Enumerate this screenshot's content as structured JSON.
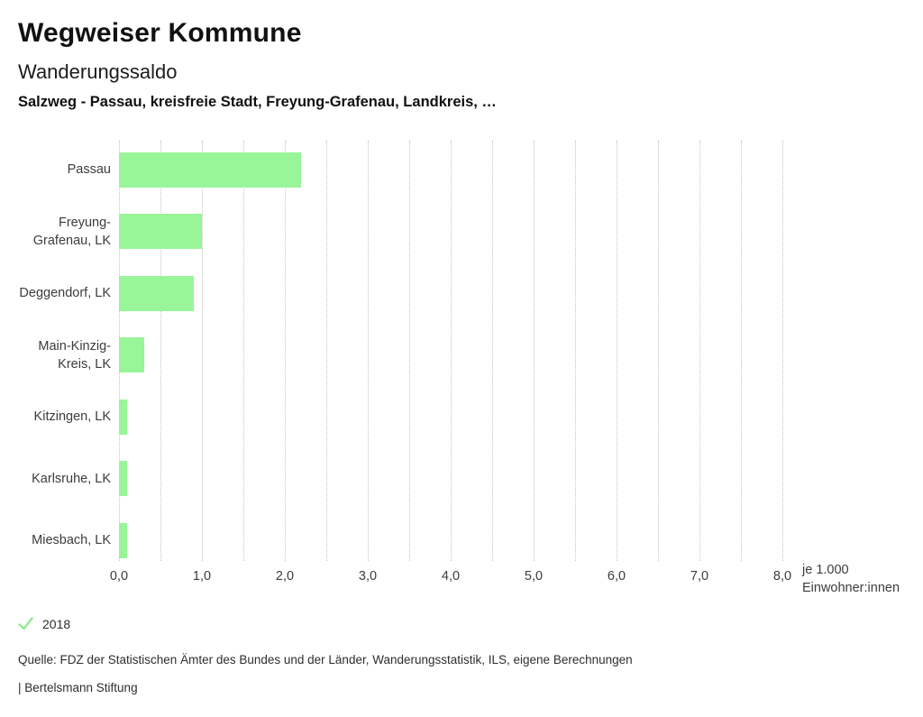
{
  "header": {
    "title": "Wegweiser Kommune",
    "subtitle": "Wanderungssaldo",
    "selection_line": "Salzweg - Passau, kreisfreie Stadt, Freyung-Grafenau, Landkreis, …"
  },
  "chart_data": {
    "type": "bar",
    "orientation": "horizontal",
    "categories": [
      "Passau",
      "Freyung-Grafenau, LK",
      "Deggendorf, LK",
      "Main-Kinzig-Kreis, LK",
      "Kitzingen, LK",
      "Karlsruhe, LK",
      "Miesbach, LK"
    ],
    "category_label_lines": [
      [
        "Passau"
      ],
      [
        "Freyung-",
        "Grafenau, LK"
      ],
      [
        "Deggendorf, LK"
      ],
      [
        "Main-Kinzig-",
        "Kreis, LK"
      ],
      [
        "Kitzingen, LK"
      ],
      [
        "Karlsruhe, LK"
      ],
      [
        "Miesbach, LK"
      ]
    ],
    "series": [
      {
        "name": "2018",
        "values": [
          2.2,
          1.0,
          0.9,
          0.3,
          0.1,
          0.1,
          0.1
        ]
      }
    ],
    "xlim": [
      0,
      8
    ],
    "x_tick_labels": [
      "0,0",
      "1,0",
      "2,0",
      "3,0",
      "4,0",
      "5,0",
      "6,0",
      "7,0",
      "8,0"
    ],
    "gridline_step": 0.5,
    "grid": true,
    "legend_position": "bottom-left",
    "unit_label": "je 1.000\nEinwohner:innen",
    "bar_color": "#98f598"
  },
  "legend": {
    "label": "2018",
    "check_color": "#94e894"
  },
  "footer": {
    "source": "Quelle: FDZ der Statistischen Ämter des Bundes und der Länder, Wanderungsstatistik, ILS, eigene Berechnungen",
    "branding": "| Bertelsmann Stiftung"
  }
}
